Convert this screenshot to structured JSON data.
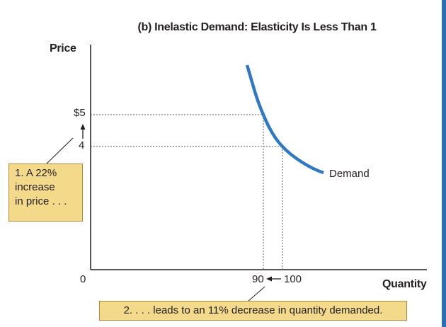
{
  "chart_data": {
    "type": "line",
    "title": "(b) Inelastic Demand: Elasticity Is Less Than 1",
    "xlabel": "Quantity",
    "ylabel": "Price",
    "origin_label": "0",
    "x_ticks": [
      "90",
      "100"
    ],
    "y_ticks": [
      "$5",
      "4"
    ],
    "series": [
      {
        "name": "Demand",
        "points": [
          [
            88.7,
            6.2
          ],
          [
            90,
            5
          ],
          [
            100,
            4
          ],
          [
            108,
            3.52
          ],
          [
            115,
            3.3
          ]
        ]
      }
    ],
    "highlighted_points": [
      {
        "quantity": 90,
        "price": 5
      },
      {
        "quantity": 100,
        "price": 4
      }
    ],
    "grid": false,
    "colors": {
      "demand_curve": "#2f78c4",
      "callout_fill": "#f3d98a",
      "callout_border": "#b3893a",
      "guide_lines": "#777777",
      "axis": "#231f20"
    },
    "annotations": {
      "price_change": [
        "1. A 22%",
        "increase",
        "in price . . ."
      ],
      "quantity_change": "2. . . . leads to an 11% decrease in quantity demanded."
    }
  }
}
